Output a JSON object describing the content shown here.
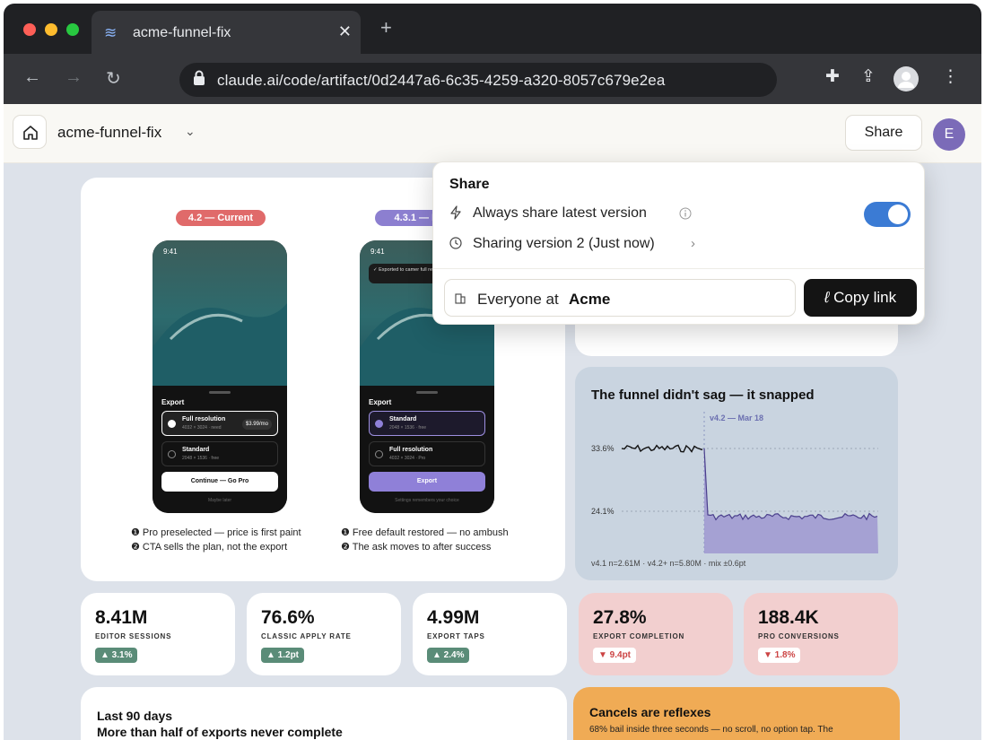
{
  "browser": {
    "tab_title": "acme-funnel-fix",
    "new_tab": "+",
    "tab_close": "✕",
    "url": "claude.ai/code/artifact/0d2447a6-6c35-4259-a320-8057c679e2ea"
  },
  "header": {
    "project_name": "acme-funnel-fix",
    "share_label": "Share",
    "user_initial": "E"
  },
  "share_popover": {
    "title": "Share",
    "always_latest_label": "Always share latest version",
    "always_latest_on": true,
    "version_label": "Sharing version 2 (Just now)",
    "audience_prefix": "Everyone at ",
    "audience_org": "Acme",
    "copy_label": "Copy link"
  },
  "comparison": {
    "current": {
      "pill": "4.2 — Current",
      "time": "9:41",
      "sheet_title": "Export",
      "option1_name": "Full resolution",
      "option1_sub": "4032 × 3024 · need",
      "option1_price": "$3.99/mo",
      "option2_name": "Standard",
      "option2_sub": "2048 × 1536 · free",
      "cta": "Continue — Go Pro",
      "cta_sub": "Maybe later",
      "bullet1": "❶ Pro preselected — price is first paint",
      "bullet2": "❷ CTA sells the plan, not the export"
    },
    "proposed": {
      "pill": "4.3.1 — P",
      "time": "9:41",
      "toast": "✓ Exported to camer full res? Try Pro free",
      "sheet_title": "Export",
      "option1_name": "Standard",
      "option1_sub": "2048 × 1536 · free",
      "option2_name": "Full resolution",
      "option2_sub": "4032 × 3024 · Pro",
      "cta": "Export",
      "cta_sub": "Settings remembers your choice",
      "bullet1": "❶ Free default restored — no ambush",
      "bullet2": "❷ The ask moves to after success"
    }
  },
  "funnel_chart": {
    "title": "The funnel didn't sag — it snapped",
    "marker": "v4.2 — Mar 18",
    "label_high": "33.6%",
    "label_low": "24.1%",
    "footnote": "v4.1 n=2.61M · v4.2+ n=5.80M · mix ±0.6pt"
  },
  "chart_data": {
    "type": "line",
    "title": "The funnel didn't sag — it snapped",
    "y_labels": [
      "33.6%",
      "24.1%"
    ],
    "series": [
      {
        "segment": "before",
        "level": 33.6
      },
      {
        "segment": "after",
        "level": 24.1
      }
    ],
    "annotations": [
      "v4.2 — Mar 18"
    ],
    "footnote": "v4.1 n=2.61M · v4.2+ n=5.80M · mix ±0.6pt"
  },
  "stats": [
    {
      "value": "8.41M",
      "label": "EDITOR SESSIONS",
      "delta": "▲ 3.1%",
      "dir": "up"
    },
    {
      "value": "76.6%",
      "label": "CLASSIC APPLY RATE",
      "delta": "▲ 1.2pt",
      "dir": "up"
    },
    {
      "value": "4.99M",
      "label": "EXPORT TAPS",
      "delta": "▲ 2.4%",
      "dir": "up"
    },
    {
      "value": "27.8%",
      "label": "EXPORT COMPLETION",
      "delta": "▼ 9.4pt",
      "dir": "down"
    },
    {
      "value": "188.4K",
      "label": "PRO CONVERSIONS",
      "delta": "▼ 1.8%",
      "dir": "down"
    }
  ],
  "bottom": {
    "left_title1": "Last 90 days",
    "left_title2": "More than half of exports never complete",
    "right_title": "Cancels are reflexes",
    "right_text": "68% bail inside three seconds — no scroll, no option tap. The"
  },
  "colors": {
    "pill_current": "#e06a6a",
    "pill_proposed": "#8c7fd0",
    "chart_bg": "#c9d4e0",
    "chart_fill": "#9f98d0",
    "toggle": "#3b7bd4",
    "orange_card": "#f0ab55",
    "red_card": "#f2cfcf"
  }
}
